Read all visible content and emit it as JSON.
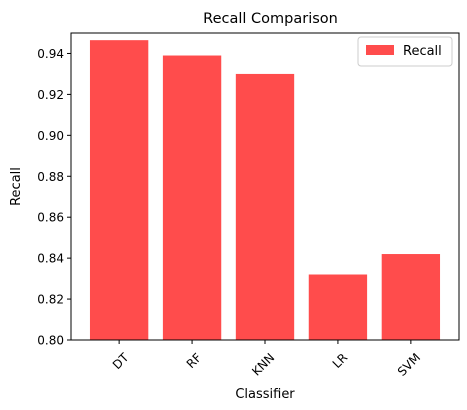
{
  "chart_data": {
    "type": "bar",
    "title": "Recall Comparison",
    "xlabel": "Classifier",
    "ylabel": "Recall",
    "categories": [
      "DT",
      "RF",
      "KNN",
      "LR",
      "SVM"
    ],
    "series": [
      {
        "name": "Recall",
        "values": [
          0.9465,
          0.939,
          0.93,
          0.832,
          0.842
        ]
      }
    ],
    "ylim": [
      0.8,
      0.95
    ],
    "yticks": [
      "0.80",
      "0.82",
      "0.84",
      "0.86",
      "0.88",
      "0.90",
      "0.92",
      "0.94"
    ],
    "bar_color": "#ff4c4c",
    "grid": false,
    "legend_position": "top-right",
    "xtick_rotation": "45"
  }
}
